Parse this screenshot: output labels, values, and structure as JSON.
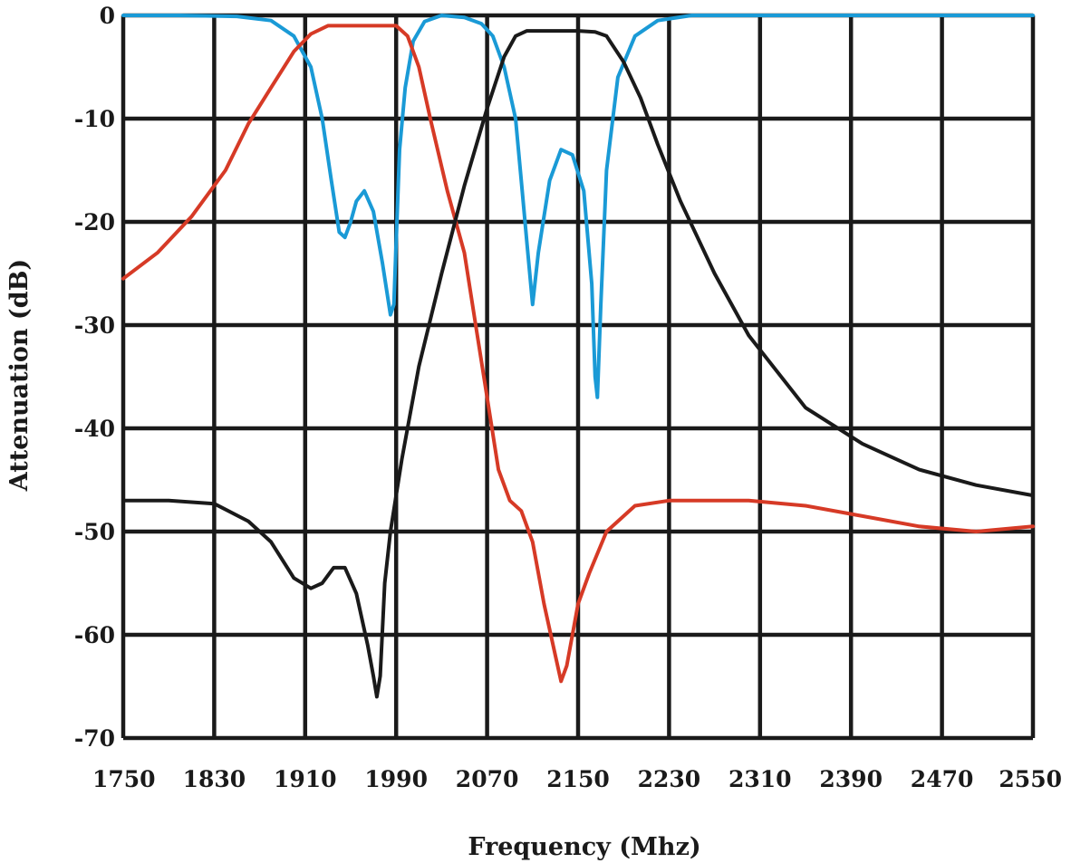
{
  "chart_data": {
    "type": "line",
    "title": "",
    "xlabel": "Frequency (Mhz)",
    "ylabel": "Attenuation (dB)",
    "xlim": [
      1750,
      2550
    ],
    "ylim": [
      -70,
      0
    ],
    "grid": true,
    "legend": "none",
    "x_ticks": [
      1750,
      1830,
      1910,
      1990,
      2070,
      2150,
      2230,
      2310,
      2390,
      2470,
      2550
    ],
    "x_tick_labels": [
      "1750",
      "1830",
      "1910",
      "1990",
      "2070",
      "2150",
      "2230",
      "2310",
      "2390",
      "2470",
      "2550"
    ],
    "y_ticks": [
      0,
      -10,
      -20,
      -30,
      -40,
      -50,
      -60,
      -70
    ],
    "y_tick_labels": [
      "0",
      "-10",
      "-20",
      "-30",
      "-40",
      "-50",
      "-60",
      "-70"
    ],
    "series": [
      {
        "color": "#1a9ad6",
        "x": [
          1750,
          1800,
          1850,
          1880,
          1900,
          1915,
          1925,
          1933,
          1940,
          1945,
          1950,
          1955,
          1962,
          1970,
          1978,
          1985,
          1988,
          1990,
          1993,
          1998,
          2005,
          2015,
          2030,
          2050,
          2065,
          2075,
          2085,
          2095,
          2100,
          2105,
          2110,
          2115,
          2125,
          2135,
          2145,
          2155,
          2162,
          2165,
          2167,
          2170,
          2175,
          2185,
          2200,
          2220,
          2250,
          2300,
          2400,
          2550
        ],
        "y": [
          0,
          0,
          -0.1,
          -0.5,
          -2,
          -5,
          -10,
          -16,
          -21,
          -21.5,
          -20,
          -18,
          -17,
          -19,
          -24,
          -29,
          -28,
          -22,
          -13,
          -7,
          -2.5,
          -0.6,
          0,
          -0.2,
          -0.8,
          -2,
          -5,
          -10,
          -16,
          -22,
          -28,
          -23,
          -16,
          -13,
          -13.5,
          -17,
          -26,
          -35,
          -37,
          -28,
          -15,
          -6,
          -2,
          -0.5,
          0,
          0,
          0,
          0
        ]
      },
      {
        "color": "#d63a26",
        "x": [
          1750,
          1780,
          1810,
          1840,
          1860,
          1880,
          1900,
          1915,
          1930,
          1950,
          1990,
          2000,
          2010,
          2020,
          2035,
          2050,
          2060,
          2070,
          2080,
          2090,
          2100,
          2110,
          2120,
          2130,
          2135,
          2140,
          2150,
          2160,
          2175,
          2200,
          2230,
          2300,
          2350,
          2400,
          2450,
          2500,
          2550
        ],
        "y": [
          -25.5,
          -23,
          -19.5,
          -15,
          -10.5,
          -7,
          -3.5,
          -1.8,
          -1,
          -1,
          -1,
          -2,
          -5,
          -10,
          -17,
          -23,
          -30,
          -37,
          -44,
          -47,
          -48,
          -51,
          -57,
          -62,
          -64.5,
          -63,
          -57,
          -54,
          -50,
          -47.5,
          -47,
          -47,
          -47.5,
          -48.5,
          -49.5,
          -50,
          -49.5
        ]
      },
      {
        "color": "#1a1a1a",
        "x": [
          1750,
          1790,
          1830,
          1860,
          1880,
          1900,
          1915,
          1925,
          1935,
          1945,
          1955,
          1965,
          1970,
          1973,
          1976,
          1980,
          1985,
          1995,
          2010,
          2030,
          2050,
          2070,
          2085,
          2095,
          2105,
          2120,
          2150,
          2165,
          2175,
          2190,
          2205,
          2220,
          2240,
          2270,
          2300,
          2350,
          2400,
          2450,
          2500,
          2550
        ],
        "y": [
          -47,
          -47,
          -47.3,
          -49,
          -51,
          -54.5,
          -55.5,
          -55,
          -53.5,
          -53.5,
          -56,
          -61,
          -64,
          -66,
          -64,
          -55,
          -50,
          -43,
          -34,
          -25,
          -16.5,
          -9,
          -4,
          -2,
          -1.5,
          -1.5,
          -1.5,
          -1.6,
          -2,
          -4.5,
          -8,
          -12.5,
          -18,
          -25,
          -31,
          -38,
          -41.5,
          -44,
          -45.5,
          -46.5
        ]
      }
    ]
  }
}
